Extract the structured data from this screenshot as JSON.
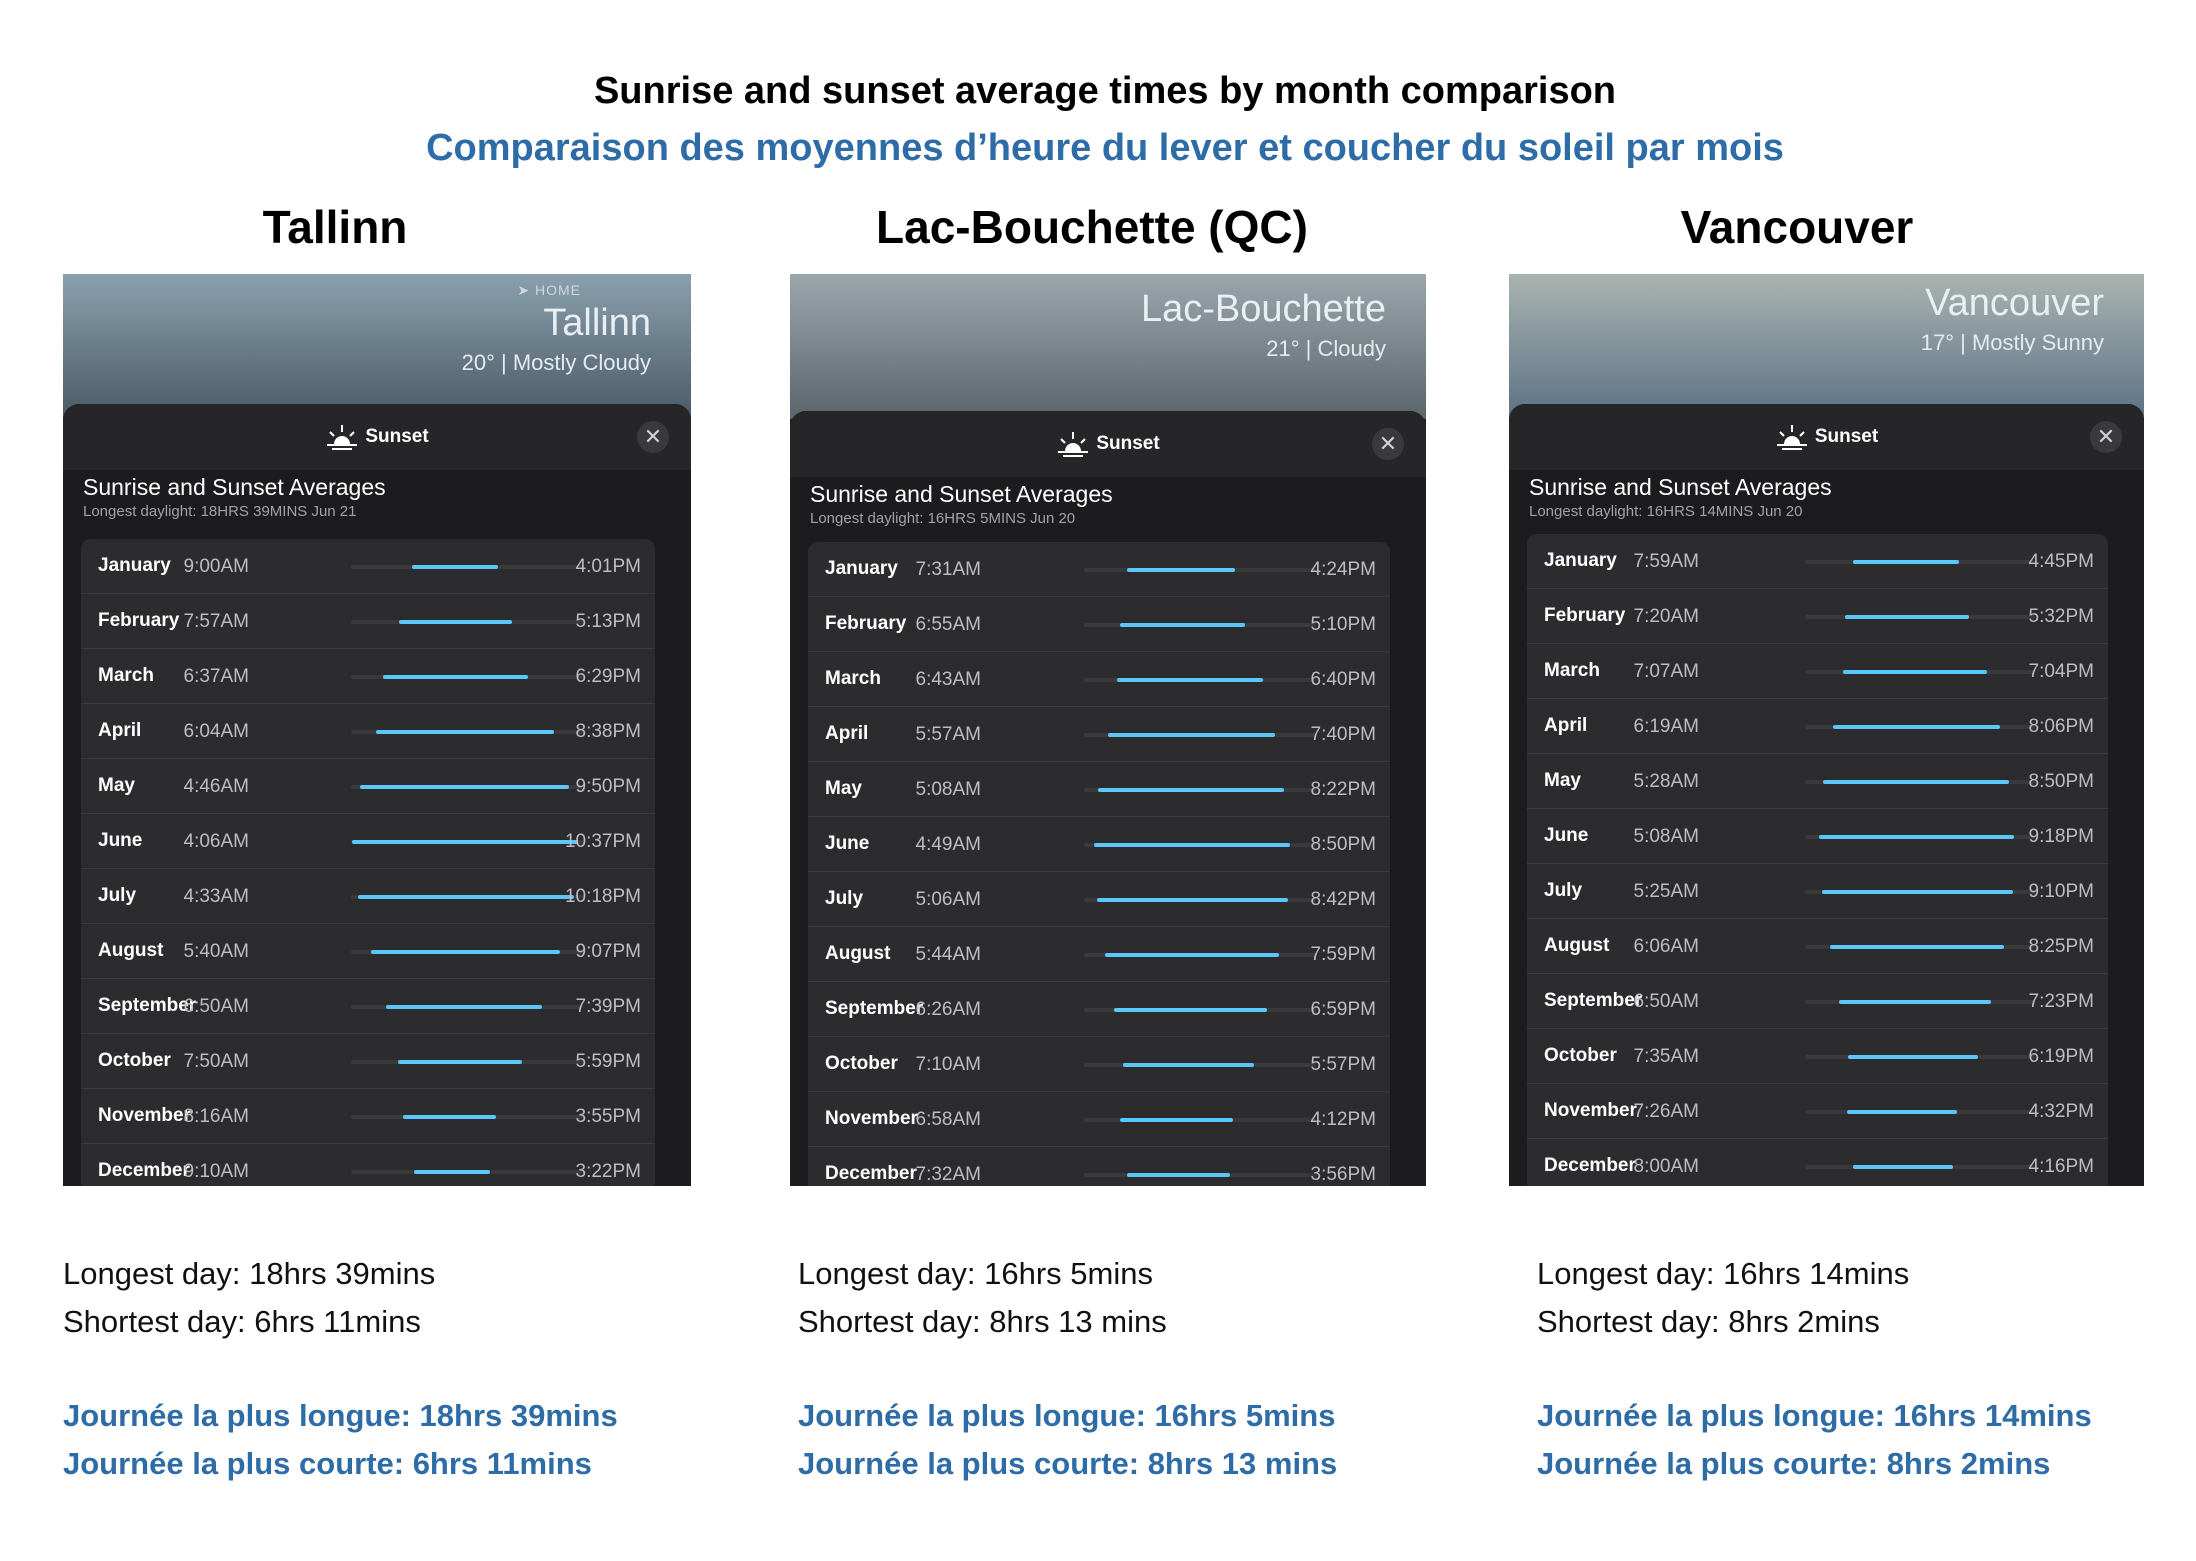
{
  "titles": {
    "english": "Sunrise and sunset average times by month comparison",
    "french": "Comparaison des moyennes d’heure du lever et coucher du soleil par mois"
  },
  "accent_color": "#2e6ca8",
  "bar_color": "#5ac8fa",
  "cities": [
    {
      "heading": "Tallinn",
      "sky": {
        "home": "➤ HOME",
        "city": "Tallinn",
        "condition": "20°  |  Mostly Cloudy",
        "colors": [
          "#8aa0ae",
          "#4b5a66"
        ]
      },
      "sheet_title": "Sunset",
      "avg_title": "Sunrise and Sunset Averages",
      "avg_sub": "Longest daylight: 18HRS 39MINS Jun 21",
      "months": [
        {
          "month": "January",
          "rise": "9:00AM",
          "set": "4:01PM"
        },
        {
          "month": "February",
          "rise": "7:57AM",
          "set": "5:13PM"
        },
        {
          "month": "March",
          "rise": "6:37AM",
          "set": "6:29PM"
        },
        {
          "month": "April",
          "rise": "6:04AM",
          "set": "8:38PM"
        },
        {
          "month": "May",
          "rise": "4:46AM",
          "set": "9:50PM"
        },
        {
          "month": "June",
          "rise": "4:06AM",
          "set": "10:37PM"
        },
        {
          "month": "July",
          "rise": "4:33AM",
          "set": "10:18PM"
        },
        {
          "month": "August",
          "rise": "5:40AM",
          "set": "9:07PM"
        },
        {
          "month": "September",
          "rise": "6:50AM",
          "set": "7:39PM"
        },
        {
          "month": "October",
          "rise": "7:50AM",
          "set": "5:59PM"
        },
        {
          "month": "November",
          "rise": "8:16AM",
          "set": "3:55PM"
        },
        {
          "month": "December",
          "rise": "9:10AM",
          "set": "3:22PM"
        }
      ],
      "notes": {
        "longest_en": "Longest day:  18hrs 39mins",
        "shortest_en": "Shortest day:  6hrs 11mins",
        "longest_fr": "Journée la plus longue: 18hrs 39mins",
        "shortest_fr": "Journée la plus courte: 6hrs 11mins"
      }
    },
    {
      "heading": "Lac-Bouchette (QC)",
      "sky": {
        "home": "",
        "city": "Lac-Bouchette",
        "condition": "21°  |  Cloudy",
        "colors": [
          "#9aa6ac",
          "#5b666c"
        ]
      },
      "sheet_title": "Sunset",
      "avg_title": "Sunrise and Sunset Averages",
      "avg_sub": "Longest daylight: 16HRS 5MINS Jun 20",
      "months": [
        {
          "month": "January",
          "rise": "7:31AM",
          "set": "4:24PM"
        },
        {
          "month": "February",
          "rise": "6:55AM",
          "set": "5:10PM"
        },
        {
          "month": "March",
          "rise": "6:43AM",
          "set": "6:40PM"
        },
        {
          "month": "April",
          "rise": "5:57AM",
          "set": "7:40PM"
        },
        {
          "month": "May",
          "rise": "5:08AM",
          "set": "8:22PM"
        },
        {
          "month": "June",
          "rise": "4:49AM",
          "set": "8:50PM"
        },
        {
          "month": "July",
          "rise": "5:06AM",
          "set": "8:42PM"
        },
        {
          "month": "August",
          "rise": "5:44AM",
          "set": "7:59PM"
        },
        {
          "month": "September",
          "rise": "6:26AM",
          "set": "6:59PM"
        },
        {
          "month": "October",
          "rise": "7:10AM",
          "set": "5:57PM"
        },
        {
          "month": "November",
          "rise": "6:58AM",
          "set": "4:12PM"
        },
        {
          "month": "December",
          "rise": "7:32AM",
          "set": "3:56PM"
        }
      ],
      "notes": {
        "longest_en": "Longest day:  16hrs 5mins",
        "shortest_en": "Shortest day:  8hrs 13 mins",
        "longest_fr": "Journée la plus longue: 16hrs 5mins",
        "shortest_fr": "Journée la plus courte: 8hrs 13 mins"
      }
    },
    {
      "heading": "Vancouver",
      "sky": {
        "home": "",
        "city": "Vancouver",
        "condition": "17°  |  Mostly Sunny",
        "colors": [
          "#a9b3b0",
          "#5d7286"
        ]
      },
      "sheet_title": "Sunset",
      "avg_title": "Sunrise and Sunset Averages",
      "avg_sub": "Longest daylight: 16HRS 14MINS Jun 20",
      "months": [
        {
          "month": "January",
          "rise": "7:59AM",
          "set": "4:45PM"
        },
        {
          "month": "February",
          "rise": "7:20AM",
          "set": "5:32PM"
        },
        {
          "month": "March",
          "rise": "7:07AM",
          "set": "7:04PM"
        },
        {
          "month": "April",
          "rise": "6:19AM",
          "set": "8:06PM"
        },
        {
          "month": "May",
          "rise": "5:28AM",
          "set": "8:50PM"
        },
        {
          "month": "June",
          "rise": "5:08AM",
          "set": "9:18PM"
        },
        {
          "month": "July",
          "rise": "5:25AM",
          "set": "9:10PM"
        },
        {
          "month": "August",
          "rise": "6:06AM",
          "set": "8:25PM"
        },
        {
          "month": "September",
          "rise": "6:50AM",
          "set": "7:23PM"
        },
        {
          "month": "October",
          "rise": "7:35AM",
          "set": "6:19PM"
        },
        {
          "month": "November",
          "rise": "7:26AM",
          "set": "4:32PM"
        },
        {
          "month": "December",
          "rise": "8:00AM",
          "set": "4:16PM"
        }
      ],
      "notes": {
        "longest_en": "Longest day:  16hrs 14mins",
        "shortest_en": "Shortest day: 8hrs 2mins",
        "longest_fr": "Journée la plus longue: 16hrs 14mins",
        "shortest_fr": "Journée la plus courte: 8hrs 2mins"
      }
    }
  ]
}
